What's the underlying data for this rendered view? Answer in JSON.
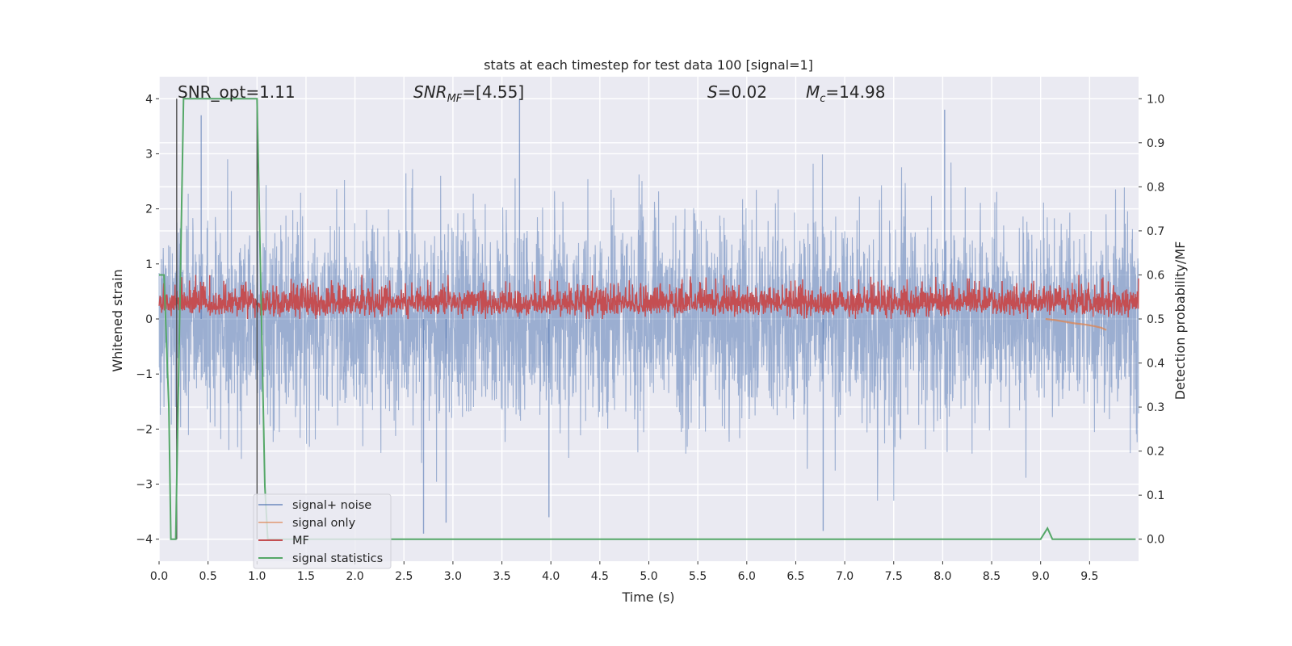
{
  "chart_data": {
    "type": "line",
    "title": "stats at each timestep for test data 100 [signal=1]",
    "xlabel": "Time (s)",
    "ylabel": "Whitened strain",
    "y2label": "Detection probability/MF",
    "xlim": [
      0.0,
      10.0
    ],
    "ylim": [
      -4.4,
      4.4
    ],
    "y2lim": [
      -0.05,
      1.05
    ],
    "x_ticks": [
      "0.0",
      "0.5",
      "1.0",
      "1.5",
      "2.0",
      "2.5",
      "3.0",
      "3.5",
      "4.0",
      "4.5",
      "5.0",
      "5.5",
      "6.0",
      "6.5",
      "7.0",
      "7.5",
      "8.0",
      "8.5",
      "9.0",
      "9.5"
    ],
    "y_ticks": [
      "4",
      "3",
      "2",
      "1",
      "0",
      "−1",
      "−2",
      "−3",
      "−4"
    ],
    "y2_ticks": [
      "1.0",
      "0.9",
      "0.8",
      "0.7",
      "0.6",
      "0.5",
      "0.4",
      "0.3",
      "0.2",
      "0.1",
      "0.0"
    ],
    "grid": true,
    "legend_position": "lower-left",
    "annotations": {
      "snr_opt": "SNR_opt=1.11",
      "snr_mf_sym": "SNR",
      "snr_mf_sub": "MF",
      "snr_mf_val": "=[4.55]",
      "s_sym": "S",
      "s_val": "=0.02",
      "mc_sym": "M",
      "mc_sub": "c",
      "mc_val": "=14.98"
    },
    "vertical_markers_x": [
      0.18,
      1.0
    ],
    "series": [
      {
        "name": "signal+ noise",
        "color": "#4c72b0",
        "axis": "left",
        "description": "dense whitened strain noise, amplitude mostly within about ±1.5 with spikes up to about ±3.8",
        "points_per_second": 400,
        "amplitude_std": 0.9,
        "notable_peaks": [
          [
            0.43,
            3.7
          ],
          [
            3.68,
            4.0
          ],
          [
            8.02,
            3.8
          ],
          [
            2.7,
            -3.9
          ],
          [
            2.93,
            -3.7
          ],
          [
            3.98,
            -3.6
          ],
          [
            6.78,
            -3.85
          ]
        ]
      },
      {
        "name": "signal only",
        "color": "#dd8452",
        "axis": "left",
        "description": "small chirp visible near the end",
        "x": [
          9.05,
          9.15,
          9.25,
          9.35,
          9.45,
          9.55,
          9.62,
          9.67
        ],
        "y": [
          0.0,
          -0.02,
          -0.05,
          -0.08,
          -0.1,
          -0.13,
          -0.16,
          -0.2
        ]
      },
      {
        "name": "MF",
        "color": "#c44e52",
        "axis": "right",
        "description": "matched-filter output, fluctuating between about 0.50 and 0.60",
        "baseline": 0.535,
        "min": 0.5,
        "max": 0.6
      },
      {
        "name": "signal statistics",
        "color": "#55a868",
        "axis": "right",
        "x": [
          0.0,
          0.05,
          0.1,
          0.12,
          0.17,
          0.25,
          1.0,
          1.08,
          1.11,
          9.0,
          9.07,
          9.12,
          9.97
        ],
        "y": [
          0.6,
          0.6,
          0.3,
          0.0,
          0.0,
          1.0,
          1.0,
          0.12,
          0.0,
          0.0,
          0.025,
          0.0,
          0.0
        ]
      }
    ]
  }
}
